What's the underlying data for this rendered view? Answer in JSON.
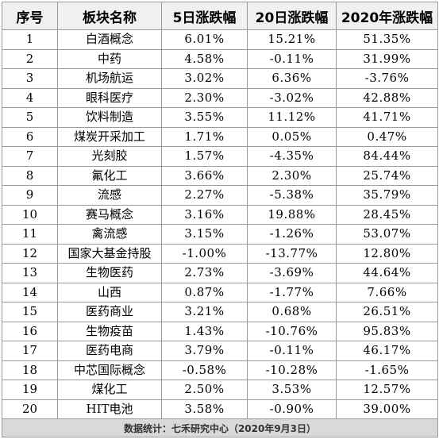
{
  "headers": [
    "序号",
    "板块名称",
    "5日涨跌幅",
    "20日涨跌幅",
    "2020年涨跌幅"
  ],
  "rows": [
    [
      "1",
      "白酒概念",
      "6.01%",
      "15.21%",
      "51.35%"
    ],
    [
      "2",
      "中药",
      "4.58%",
      "-0.11%",
      "31.99%"
    ],
    [
      "3",
      "机场航运",
      "3.02%",
      "6.36%",
      "-3.76%"
    ],
    [
      "4",
      "眼科医疗",
      "2.30%",
      "-3.02%",
      "42.88%"
    ],
    [
      "5",
      "饮料制造",
      "3.55%",
      "11.12%",
      "41.71%"
    ],
    [
      "6",
      "煤炭开采加工",
      "1.71%",
      "0.05%",
      "0.47%"
    ],
    [
      "7",
      "光刻胶",
      "1.57%",
      "-4.35%",
      "84.44%"
    ],
    [
      "8",
      "氟化工",
      "3.66%",
      "2.30%",
      "25.74%"
    ],
    [
      "9",
      "流感",
      "2.27%",
      "-5.38%",
      "35.79%"
    ],
    [
      "10",
      "赛马概念",
      "3.16%",
      "19.88%",
      "28.45%"
    ],
    [
      "11",
      "禽流感",
      "3.15%",
      "-1.26%",
      "53.07%"
    ],
    [
      "12",
      "国家大基金持股",
      "-1.00%",
      "-13.77%",
      "12.80%"
    ],
    [
      "13",
      "生物医药",
      "2.73%",
      "-3.69%",
      "44.64%"
    ],
    [
      "14",
      "山西",
      "0.87%",
      "-1.77%",
      "7.66%"
    ],
    [
      "15",
      "医药商业",
      "3.21%",
      "0.68%",
      "26.51%"
    ],
    [
      "16",
      "生物疫苗",
      "1.43%",
      "-10.76%",
      "95.83%"
    ],
    [
      "17",
      "医药电商",
      "3.79%",
      "-0.11%",
      "46.17%"
    ],
    [
      "18",
      "中芯国际概念",
      "-0.58%",
      "-10.28%",
      "-1.65%"
    ],
    [
      "19",
      "煤化工",
      "2.50%",
      "3.53%",
      "12.57%"
    ],
    [
      "20",
      "HIT电池",
      "3.58%",
      "-0.90%",
      "39.00%"
    ]
  ],
  "footer": "数据统计：七禾研究中心（2020年9月3日）"
}
